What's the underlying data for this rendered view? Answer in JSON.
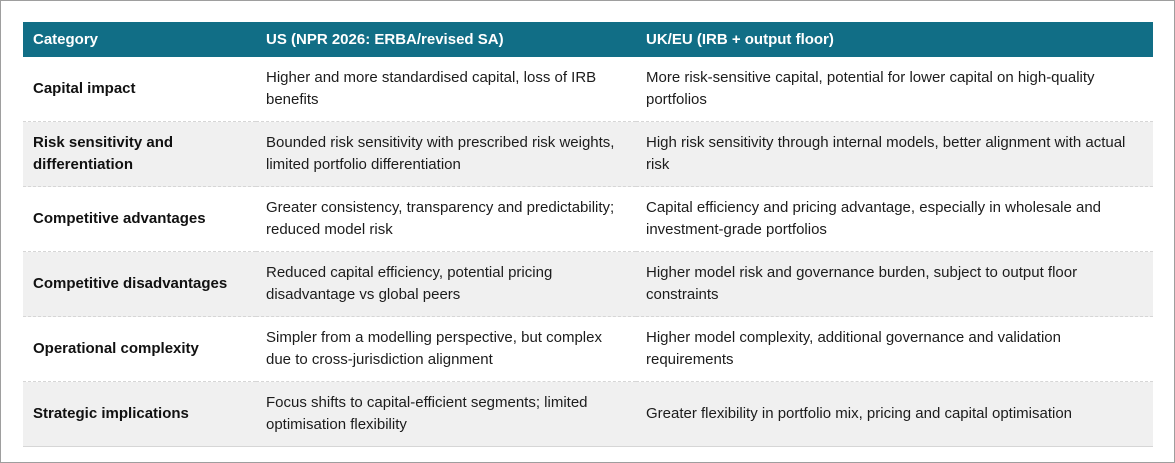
{
  "colors": {
    "header_bg": "#116e86",
    "header_text": "#ffffff",
    "row_bg": "#ffffff",
    "row_alt_bg": "#f0f0f0",
    "body_text": "#1c1c1c",
    "divider": "#d6d6d6"
  },
  "table": {
    "columns": [
      {
        "label": "Category"
      },
      {
        "label": "US (NPR 2026: ERBA/revised SA)"
      },
      {
        "label": "UK/EU (IRB + output floor)"
      }
    ],
    "rows": [
      {
        "category": "Capital impact",
        "us": "Higher and more standardised capital, loss of IRB benefits",
        "ukeu": "More risk-sensitive capital, potential for lower capital on high-quality portfolios"
      },
      {
        "category": "Risk sensitivity and differentiation",
        "us": "Bounded risk sensitivity with prescribed risk weights, limited portfolio differentiation",
        "ukeu": "High risk sensitivity through internal models, better alignment with actual risk"
      },
      {
        "category": "Competitive advantages",
        "us": "Greater consistency, transparency and predictability; reduced model risk",
        "ukeu": "Capital efficiency and pricing advantage, especially in wholesale and investment-grade portfolios"
      },
      {
        "category": "Competitive disadvantages",
        "us": "Reduced capital efficiency, potential pricing disadvantage vs global peers",
        "ukeu": "Higher model risk and governance burden, subject to output floor constraints"
      },
      {
        "category": "Operational complexity",
        "us": "Simpler from a modelling perspective, but complex due to cross-jurisdiction alignment",
        "ukeu": "Higher model complexity, additional governance and validation requirements"
      },
      {
        "category": "Strategic implications",
        "us": "Focus shifts to capital-efficient segments; limited optimisation flexibility",
        "ukeu": "Greater flexibility in portfolio mix, pricing and capital optimisation"
      }
    ]
  }
}
